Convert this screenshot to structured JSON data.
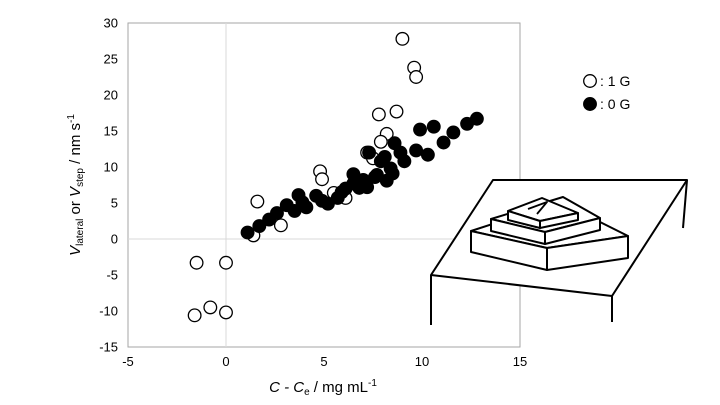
{
  "chart_data": {
    "type": "scatter",
    "title": "",
    "xlabel": {
      "main": "C - C",
      "sub": "e",
      "unit_pre": " / mg mL",
      "unit_sup": "-1"
    },
    "ylabel": {
      "v1": "V",
      "sub1": "lateral",
      "mid": " or ",
      "v2": "V",
      "sub2": "step",
      "unit_pre": " / nm s",
      "unit_sup": "-1"
    },
    "xlim": [
      -5,
      15
    ],
    "ylim": [
      -15,
      30
    ],
    "xticks": [
      -5,
      0,
      5,
      10,
      15
    ],
    "yticks": [
      -15,
      -10,
      -5,
      0,
      5,
      10,
      15,
      20,
      25,
      30
    ],
    "xtick_labels": [
      "-5",
      "0",
      "5",
      "10",
      "15"
    ],
    "ytick_labels": [
      "-15",
      "-10",
      "-5",
      "0",
      "5",
      "10",
      "15",
      "20",
      "25",
      "30"
    ],
    "grid": "major gridlines at x = 0 and y = 0",
    "legend_position": "top-right",
    "series": [
      {
        "name": ": 1 G",
        "marker": "open-circle",
        "color": "#000000",
        "x": [
          9.0,
          9.6,
          9.7,
          8.7,
          7.8,
          8.2,
          7.9,
          7.2,
          7.5,
          4.8,
          4.9,
          5.5,
          6.1,
          1.6,
          1.4,
          2.8,
          -1.5,
          0.0,
          -0.8,
          -1.6,
          0.0
        ],
        "y": [
          27.8,
          23.8,
          22.5,
          17.7,
          17.3,
          14.6,
          13.5,
          12.0,
          11.2,
          9.4,
          8.3,
          6.4,
          5.7,
          5.2,
          0.5,
          1.9,
          -3.3,
          -3.3,
          -9.5,
          -10.6,
          -10.2
        ]
      },
      {
        "name": ": 0 G",
        "marker": "filled-circle",
        "color": "#000000",
        "x": [
          12.8,
          12.3,
          11.6,
          11.1,
          10.3,
          9.9,
          10.6,
          9.7,
          8.6,
          8.9,
          9.1,
          8.1,
          7.9,
          8.4,
          7.7,
          7.2,
          8.5,
          8.2,
          7.6,
          6.8,
          6.5,
          6.1,
          6.5,
          7.3,
          5.7,
          5.2,
          4.9,
          4.6,
          3.7,
          3.9,
          3.5,
          3.1,
          2.6,
          2.2,
          1.7,
          1.1,
          7.0,
          5.9,
          4.1
        ],
        "y": [
          16.7,
          16.0,
          14.8,
          13.4,
          11.7,
          15.2,
          15.6,
          12.3,
          13.3,
          12.0,
          10.8,
          11.4,
          10.8,
          9.8,
          8.9,
          7.2,
          9.1,
          8.1,
          8.6,
          7.1,
          7.7,
          7.0,
          9.0,
          12.0,
          5.7,
          4.9,
          5.3,
          6.0,
          6.1,
          5.1,
          3.9,
          4.7,
          3.6,
          2.7,
          1.8,
          0.9,
          8.2,
          6.5,
          4.4
        ]
      }
    ]
  }
}
